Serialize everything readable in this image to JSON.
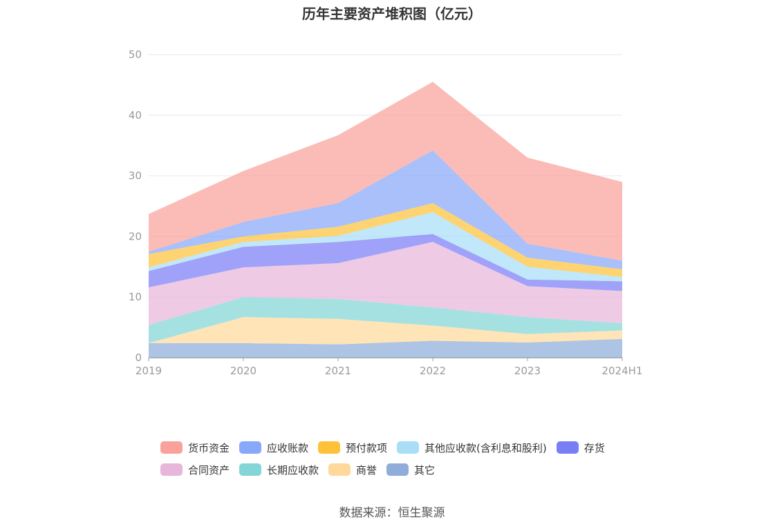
{
  "chart_data": {
    "type": "area",
    "stacked": true,
    "title": "历年主要资产堆积图（亿元）",
    "categories": [
      "2019",
      "2020",
      "2021",
      "2022",
      "2023",
      "2024H1"
    ],
    "ylim": [
      0,
      50
    ],
    "yticks": [
      0,
      10,
      20,
      30,
      40,
      50
    ],
    "xlabel": "",
    "ylabel": "",
    "grid": true,
    "legend_position": "bottom",
    "series": [
      {
        "name": "其它",
        "color": "#8eadd9",
        "values": [
          2.4,
          2.4,
          2.2,
          2.8,
          2.5,
          3.1
        ]
      },
      {
        "name": "商誉",
        "color": "#fed99b",
        "values": [
          0.0,
          4.3,
          4.2,
          2.5,
          1.4,
          1.4
        ]
      },
      {
        "name": "长期应收款",
        "color": "#83d5d7",
        "values": [
          3.0,
          3.3,
          3.3,
          3.0,
          2.8,
          1.2
        ]
      },
      {
        "name": "合同资产",
        "color": "#e7b6db",
        "values": [
          6.2,
          4.9,
          5.9,
          10.8,
          5.1,
          5.3
        ]
      },
      {
        "name": "存货",
        "color": "#7a7ef5",
        "values": [
          2.7,
          3.4,
          3.5,
          1.3,
          1.1,
          1.6
        ]
      },
      {
        "name": "其他应收款(含利息和股利)",
        "color": "#a8def8",
        "values": [
          0.6,
          0.8,
          1.0,
          3.6,
          2.1,
          0.7
        ]
      },
      {
        "name": "预付款项",
        "color": "#fec23a",
        "values": [
          2.2,
          0.9,
          1.5,
          1.5,
          1.5,
          1.3
        ]
      },
      {
        "name": "应收账款",
        "color": "#88a8fa",
        "values": [
          0.4,
          2.4,
          3.9,
          8.7,
          2.3,
          1.4
        ]
      },
      {
        "name": "货币资金",
        "color": "#f9a29b",
        "values": [
          6.2,
          8.4,
          11.2,
          11.3,
          14.2,
          13.0
        ]
      }
    ]
  },
  "legend": {
    "row1": [
      "货币资金",
      "应收账款",
      "预付款项",
      "其他应收款(含利息和股利)",
      "存货"
    ],
    "row2": [
      "合同资产",
      "长期应收款",
      "商誉",
      "其它"
    ]
  },
  "source": "数据来源：恒生聚源"
}
